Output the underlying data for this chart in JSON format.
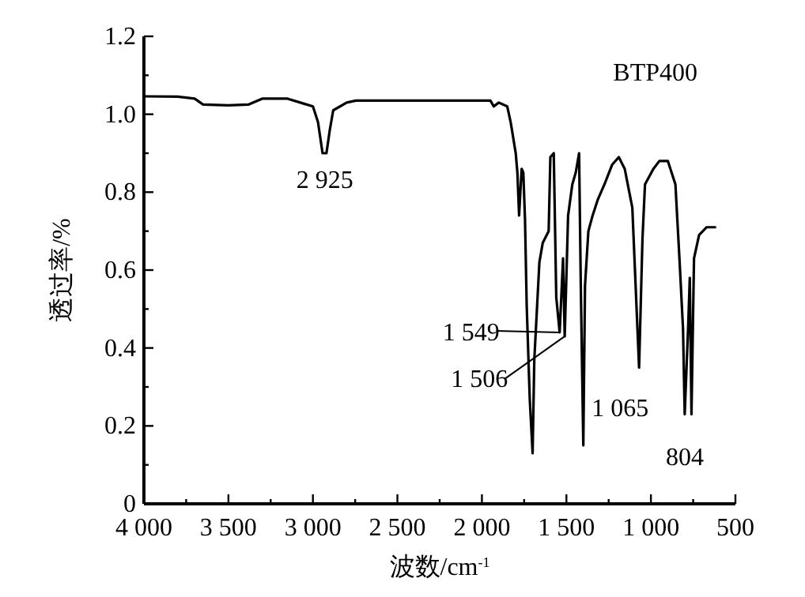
{
  "chart_data": {
    "type": "line",
    "xlabel": "波数/cm$^{-1}$",
    "ylabel": "透过率/%",
    "xlim": [
      4000,
      500
    ],
    "ylim": [
      0,
      1.2
    ],
    "xticks": [
      {
        "value": 4000,
        "label": "4 000"
      },
      {
        "value": 3750,
        "label": null
      },
      {
        "value": 3500,
        "label": "3 500"
      },
      {
        "value": 3250,
        "label": null
      },
      {
        "value": 3000,
        "label": "3 000"
      },
      {
        "value": 2750,
        "label": null
      },
      {
        "value": 2500,
        "label": "2 500"
      },
      {
        "value": 2250,
        "label": null
      },
      {
        "value": 2000,
        "label": "2 000"
      },
      {
        "value": 1750,
        "label": null
      },
      {
        "value": 1500,
        "label": "1 500"
      },
      {
        "value": 1250,
        "label": null
      },
      {
        "value": 1000,
        "label": "1 000"
      },
      {
        "value": 750,
        "label": null
      },
      500
    ],
    "yticks": [
      0,
      {
        "value": 0.1,
        "label": null
      },
      0.2,
      {
        "value": 0.3,
        "label": null
      },
      0.4,
      {
        "value": 0.5,
        "label": null
      },
      0.6,
      {
        "value": 0.7,
        "label": null
      },
      0.8,
      {
        "value": 0.9,
        "label": null
      },
      {
        "value": 1,
        "label": "1.0"
      },
      {
        "value": 1.1,
        "label": null
      },
      1.2
    ],
    "series": [
      {
        "color": "#000000",
        "x": [
          4000,
          3800,
          3700,
          3650,
          3500,
          3380,
          3300,
          3150,
          3075,
          3000,
          2970,
          2943,
          2920,
          2900,
          2880,
          2800,
          2745,
          2400,
          2000,
          1950,
          1930,
          1900,
          1850,
          1830,
          1800,
          1790,
          1780,
          1765,
          1755,
          1745,
          1735,
          1717,
          1700,
          1690,
          1660,
          1640,
          1605,
          1595,
          1575,
          1560,
          1540,
          1520,
          1510,
          1490,
          1465,
          1445,
          1425,
          1415,
          1400,
          1390,
          1370,
          1345,
          1315,
          1275,
          1230,
          1190,
          1155,
          1110,
          1070,
          1050,
          1035,
          985,
          950,
          900,
          855,
          830,
          810,
          800,
          780,
          770,
          760,
          745,
          715,
          670,
          620
        ],
        "values": [
          1.046,
          1.045,
          1.04,
          1.025,
          1.023,
          1.025,
          1.04,
          1.04,
          1.03,
          1.02,
          0.98,
          0.9,
          0.9,
          0.96,
          1.01,
          1.03,
          1.035,
          1.035,
          1.035,
          1.035,
          1.02,
          1.03,
          1.02,
          0.98,
          0.9,
          0.85,
          0.74,
          0.86,
          0.85,
          0.73,
          0.51,
          0.27,
          0.13,
          0.37,
          0.62,
          0.67,
          0.7,
          0.89,
          0.9,
          0.53,
          0.44,
          0.63,
          0.43,
          0.74,
          0.82,
          0.85,
          0.9,
          0.56,
          0.15,
          0.56,
          0.7,
          0.74,
          0.78,
          0.82,
          0.87,
          0.89,
          0.86,
          0.76,
          0.35,
          0.68,
          0.82,
          0.86,
          0.88,
          0.88,
          0.82,
          0.62,
          0.45,
          0.23,
          0.45,
          0.58,
          0.23,
          0.63,
          0.69,
          0.71,
          0.71
        ]
      }
    ],
    "annotations": [
      "BTP400",
      {
        "text": "2 925",
        "x": 2930,
        "y": 0.9
      },
      {
        "text": "1 549",
        "x": 1540,
        "y": 0.44
      },
      {
        "text": "1 506",
        "x": 1510,
        "y": 0.43
      },
      {
        "text": "1 065",
        "x": 1070,
        "y": 0.35
      },
      {
        "text": "804",
        "x": 800,
        "y": 0.23
      }
    ]
  }
}
